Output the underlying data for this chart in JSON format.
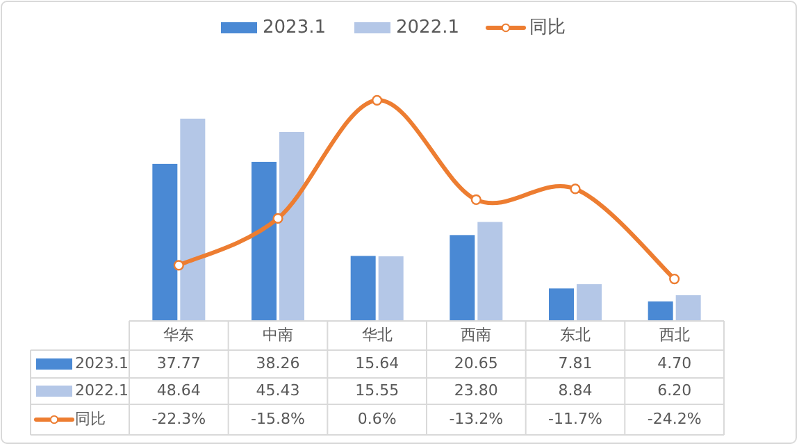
{
  "chart_data": {
    "type": "bar",
    "categories": [
      "华东",
      "中南",
      "华北",
      "西南",
      "东北",
      "西北"
    ],
    "series": [
      {
        "name": "2023.1",
        "color": "#4a89d4",
        "values": [
          37.77,
          38.26,
          15.64,
          20.65,
          7.81,
          4.7
        ],
        "value_labels": [
          "37.77",
          "38.26",
          "15.64",
          "20.65",
          "7.81",
          "4.70"
        ]
      },
      {
        "name": "2022.1",
        "color": "#b4c7e7",
        "values": [
          48.64,
          45.43,
          15.55,
          23.8,
          8.84,
          6.2
        ],
        "value_labels": [
          "48.64",
          "45.43",
          "15.55",
          "23.80",
          "8.84",
          "6.20"
        ]
      },
      {
        "name": "同比",
        "type": "line",
        "axis": "y2",
        "color": "#ed7d31",
        "marker": "circle",
        "values": [
          -22.3,
          -15.8,
          0.6,
          -13.2,
          -11.7,
          -24.2
        ],
        "value_labels": [
          "-22.3%",
          "-15.8%",
          "0.6%",
          "-13.2%",
          "-11.7%",
          "-24.2%"
        ]
      }
    ],
    "tick_labels": "x",
    "legend": "top"
  }
}
